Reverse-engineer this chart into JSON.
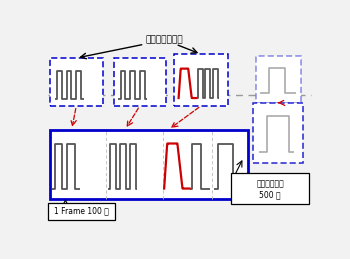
{
  "title": "數位示波器取樣",
  "label_frame": "1 Frame 100 點",
  "label_screen_line1": "示波器螢光妕",
  "label_screen_line2": "500 點",
  "bg_color": "#f2f2f2",
  "signal_color": "#555555",
  "light_signal_color": "#aaaaaa",
  "red_color": "#cc0000",
  "blue_color": "#0000cc",
  "dashed_line_color": "#999999",
  "arrow_color": "#cc0000",
  "black": "#000000"
}
